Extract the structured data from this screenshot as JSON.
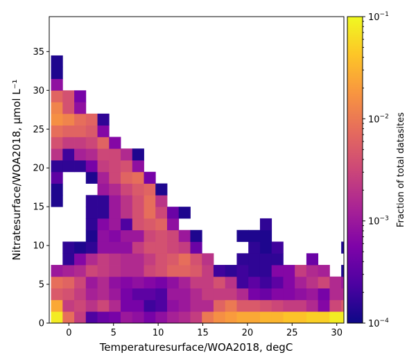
{
  "chart_data": {
    "type": "heatmap",
    "xlabel": "Temperaturesurface/WOA2018,  degC",
    "ylabel": "Nitratesurface/WOA2018,  μmol L⁻¹",
    "xlim": [
      -2.2,
      30.8
    ],
    "ylim": [
      0,
      39.5
    ],
    "x_bin_start": -2,
    "x_bin_width": 1.3,
    "y_bin_start": 0,
    "y_bin_width": 1.5,
    "x_ticks": [
      0,
      5,
      10,
      15,
      20,
      25,
      30
    ],
    "y_ticks": [
      0,
      5,
      10,
      15,
      20,
      25,
      30,
      35
    ],
    "colorbar": {
      "label": "Fraction of total datasites",
      "scale": "log",
      "range": [
        0.0001,
        0.1
      ],
      "ticks": [
        {
          "value": 0.1,
          "mant": "10",
          "exp": "−1"
        },
        {
          "value": 0.01,
          "mant": "10",
          "exp": "−2"
        },
        {
          "value": 0.001,
          "mant": "10",
          "exp": "−3"
        },
        {
          "value": 0.0001,
          "mant": "10",
          "exp": "−4"
        }
      ],
      "colormap": "plasma"
    },
    "log10_values": [
      [
        -1.1,
        -2.1,
        -2.6,
        -3.6,
        -3.4,
        -3.3,
        -3.0,
        -3.1,
        -3.3,
        -3.1,
        -2.9,
        -2.8,
        -2.6,
        -2.0,
        -1.8,
        -1.7,
        -1.6,
        -1.6,
        -1.5,
        -1.5,
        -1.4,
        -1.4,
        -1.3,
        -1.3,
        -1.1,
        -1.1,
        -1.1,
        -1.7
      ],
      [
        -1.6,
        -2.6,
        -2.5,
        -2.7,
        -2.5,
        -2.8,
        -3.3,
        -3.3,
        -3.7,
        -3.6,
        -3.1,
        -3.0,
        -2.8,
        -2.8,
        -2.2,
        -2.0,
        -2.3,
        -2.3,
        -2.4,
        -2.5,
        -2.6,
        -2.6,
        -2.8,
        -3.2,
        -2.5,
        -2.3,
        -2.0,
        null
      ],
      [
        -2.3,
        -2.4,
        -2.6,
        -2.9,
        -2.8,
        -3.0,
        -3.3,
        -3.5,
        -3.5,
        -3.6,
        -3.0,
        -3.0,
        -2.8,
        -2.6,
        -2.6,
        -2.6,
        -2.8,
        -3.3,
        -3.4,
        -3.2,
        -3.2,
        -3.1,
        -3.0,
        -3.3,
        -2.8,
        -2.8,
        -3.6,
        null
      ],
      [
        -2.1,
        -2.2,
        -2.5,
        -3.0,
        -2.8,
        -3.1,
        -3.2,
        -3.1,
        -3.2,
        -3.3,
        -3.1,
        -2.9,
        -2.6,
        -2.6,
        -2.4,
        -2.7,
        -3.7,
        -3.5,
        -3.7,
        -3.5,
        -3.2,
        -2.9,
        -2.7,
        -2.5,
        -2.8,
        -3.0,
        -3.8,
        null
      ],
      [
        -3.0,
        -2.9,
        -2.8,
        -2.5,
        -2.6,
        -2.7,
        -2.8,
        -2.8,
        -2.5,
        -2.4,
        -2.2,
        -2.2,
        -2.3,
        -2.6,
        -3.7,
        -3.8,
        -3.7,
        -3.8,
        -3.8,
        -3.2,
        -3.2,
        -2.6,
        -2.8,
        -2.9,
        null,
        -3.9,
        null,
        null
      ],
      [
        null,
        -3.8,
        -3.2,
        -2.8,
        -2.6,
        -2.7,
        -2.8,
        -2.8,
        -2.6,
        -2.4,
        -2.3,
        -2.1,
        -2.4,
        -2.7,
        null,
        null,
        -3.8,
        -3.8,
        -3.8,
        -3.8,
        null,
        null,
        -3.4,
        null,
        null,
        null,
        null,
        null
      ],
      [
        null,
        -3.8,
        -3.9,
        -3.8,
        -3.1,
        -3.1,
        -3.1,
        -2.6,
        -2.4,
        -2.4,
        -2.5,
        -2.6,
        -3.4,
        null,
        null,
        null,
        null,
        -3.8,
        -3.9,
        -3.7,
        null,
        null,
        null,
        null,
        null,
        -3.9,
        null,
        null
      ],
      [
        null,
        null,
        null,
        -3.9,
        -3.1,
        -3.2,
        -3.0,
        -3.0,
        -2.5,
        -2.4,
        -2.5,
        -3.0,
        -3.9,
        null,
        null,
        null,
        -3.9,
        -3.9,
        -3.9,
        null,
        null,
        null,
        null,
        null,
        null,
        null,
        null,
        null
      ],
      [
        null,
        null,
        null,
        -3.8,
        -3.2,
        -3.0,
        -3.6,
        -2.4,
        -2.3,
        -2.2,
        -3.1,
        null,
        null,
        null,
        null,
        null,
        null,
        null,
        -3.8,
        null,
        null,
        null,
        null,
        null,
        null,
        null,
        null,
        null
      ],
      [
        null,
        null,
        null,
        -3.8,
        -3.8,
        -3.0,
        -2.7,
        -2.4,
        -2.1,
        -2.5,
        -3.4,
        -3.9,
        null,
        null,
        null,
        null,
        null,
        null,
        null,
        null,
        null,
        null,
        null,
        null,
        null,
        null,
        null,
        null
      ],
      [
        -3.9,
        null,
        null,
        -3.8,
        -3.8,
        -3.0,
        -2.7,
        -2.4,
        -2.1,
        -2.7,
        null,
        null,
        null,
        null,
        null,
        null,
        null,
        null,
        null,
        null,
        null,
        null,
        null,
        null,
        null,
        null,
        null,
        null
      ],
      [
        -3.9,
        null,
        null,
        null,
        -3.0,
        -2.8,
        -2.5,
        -2.3,
        -2.2,
        -3.9,
        null,
        null,
        null,
        null,
        null,
        null,
        null,
        null,
        null,
        null,
        null,
        null,
        null,
        null,
        null,
        null,
        null,
        null
      ],
      [
        -3.5,
        null,
        null,
        -3.9,
        -2.9,
        -2.5,
        -2.2,
        -2.1,
        -3.3,
        null,
        null,
        null,
        null,
        null,
        null,
        null,
        null,
        null,
        null,
        null,
        null,
        null,
        null,
        null,
        null,
        null,
        null,
        null
      ],
      [
        -3.8,
        -3.8,
        -3.8,
        -3.3,
        -2.6,
        -2.5,
        -2.4,
        -3.1,
        null,
        null,
        null,
        null,
        null,
        null,
        null,
        null,
        null,
        null,
        null,
        null,
        null,
        null,
        null,
        null,
        null,
        null,
        null,
        null
      ],
      [
        -2.7,
        -3.7,
        -2.9,
        -2.8,
        -2.5,
        -2.5,
        -2.8,
        -3.9,
        null,
        null,
        null,
        null,
        null,
        null,
        null,
        null,
        null,
        null,
        null,
        null,
        null,
        null,
        null,
        null,
        null,
        null,
        null,
        null
      ],
      [
        -2.4,
        -2.6,
        -2.6,
        -2.5,
        -2.2,
        -3.2,
        null,
        null,
        null,
        null,
        null,
        null,
        null,
        null,
        null,
        null,
        null,
        null,
        null,
        null,
        null,
        null,
        null,
        null,
        null,
        null,
        null,
        null
      ],
      [
        -2.1,
        -2.2,
        -2.2,
        -2.3,
        -3.2,
        null,
        null,
        null,
        null,
        null,
        null,
        null,
        null,
        null,
        null,
        null,
        null,
        null,
        null,
        null,
        null,
        null,
        null,
        null,
        null,
        null,
        null,
        null
      ],
      [
        -1.8,
        -1.9,
        -2.1,
        -2.2,
        -3.8,
        null,
        null,
        null,
        null,
        null,
        null,
        null,
        null,
        null,
        null,
        null,
        null,
        null,
        null,
        null,
        null,
        null,
        null,
        null,
        null,
        null,
        null,
        null
      ],
      [
        -1.9,
        -2.4,
        -3.1,
        null,
        null,
        null,
        null,
        null,
        null,
        null,
        null,
        null,
        null,
        null,
        null,
        null,
        null,
        null,
        null,
        null,
        null,
        null,
        null,
        null,
        null,
        null,
        null,
        null
      ],
      [
        -2.2,
        -2.4,
        -3.3,
        null,
        null,
        null,
        null,
        null,
        null,
        null,
        null,
        null,
        null,
        null,
        null,
        null,
        null,
        null,
        null,
        null,
        null,
        null,
        null,
        null,
        null,
        null,
        null,
        null
      ],
      [
        -3.1,
        null,
        null,
        null,
        null,
        null,
        null,
        null,
        null,
        null,
        null,
        null,
        null,
        null,
        null,
        null,
        null,
        null,
        null,
        null,
        null,
        null,
        null,
        null,
        null,
        null,
        null,
        null
      ],
      [
        -3.9,
        null,
        null,
        null,
        null,
        null,
        null,
        null,
        null,
        null,
        null,
        null,
        null,
        null,
        null,
        null,
        null,
        null,
        null,
        null,
        null,
        null,
        null,
        null,
        null,
        null,
        null,
        null
      ],
      [
        -3.9,
        null,
        null,
        null,
        null,
        null,
        null,
        null,
        null,
        null,
        null,
        null,
        null,
        null,
        null,
        null,
        null,
        null,
        null,
        null,
        null,
        null,
        null,
        null,
        null,
        null,
        null,
        null
      ]
    ]
  }
}
